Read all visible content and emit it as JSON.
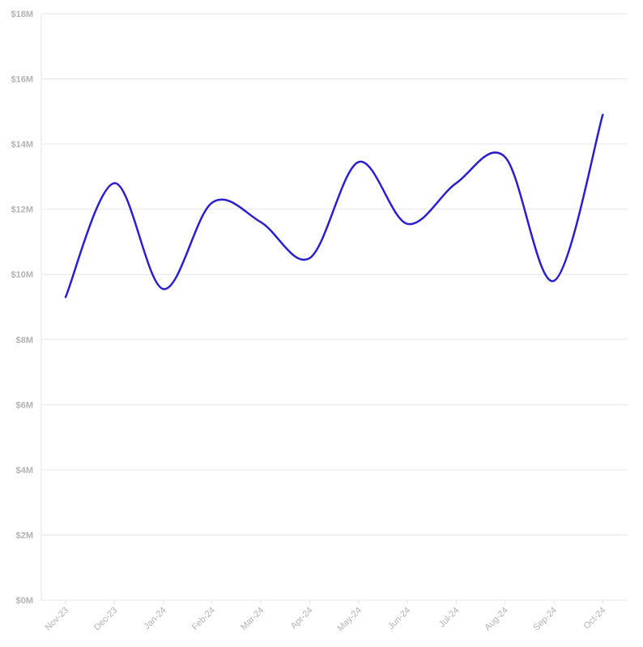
{
  "chart_data": {
    "type": "line",
    "title": "",
    "xlabel": "",
    "ylabel": "",
    "categories": [
      "Nov-23",
      "Dec-23",
      "Jan-24",
      "Feb-24",
      "Mar-24",
      "Apr-24",
      "May-24",
      "Jun-24",
      "Jul-24",
      "Aug-24",
      "Sep-24",
      "Oct-24"
    ],
    "series": [
      {
        "values": [
          9.3,
          12.8,
          9.55,
          12.2,
          11.6,
          10.5,
          13.45,
          11.55,
          12.8,
          13.6,
          9.8,
          14.9
        ]
      }
    ],
    "ylim": [
      0,
      18
    ],
    "yticks": [
      0,
      2,
      4,
      6,
      8,
      10,
      12,
      14,
      16,
      18
    ],
    "ytick_labels": [
      "$0M",
      "$2M",
      "$4M",
      "$6M",
      "$8M",
      "$10M",
      "$12M",
      "$14M",
      "$16M",
      "$18M"
    ],
    "grid": true,
    "legend": "none",
    "line_color": "#2a1fd0"
  }
}
